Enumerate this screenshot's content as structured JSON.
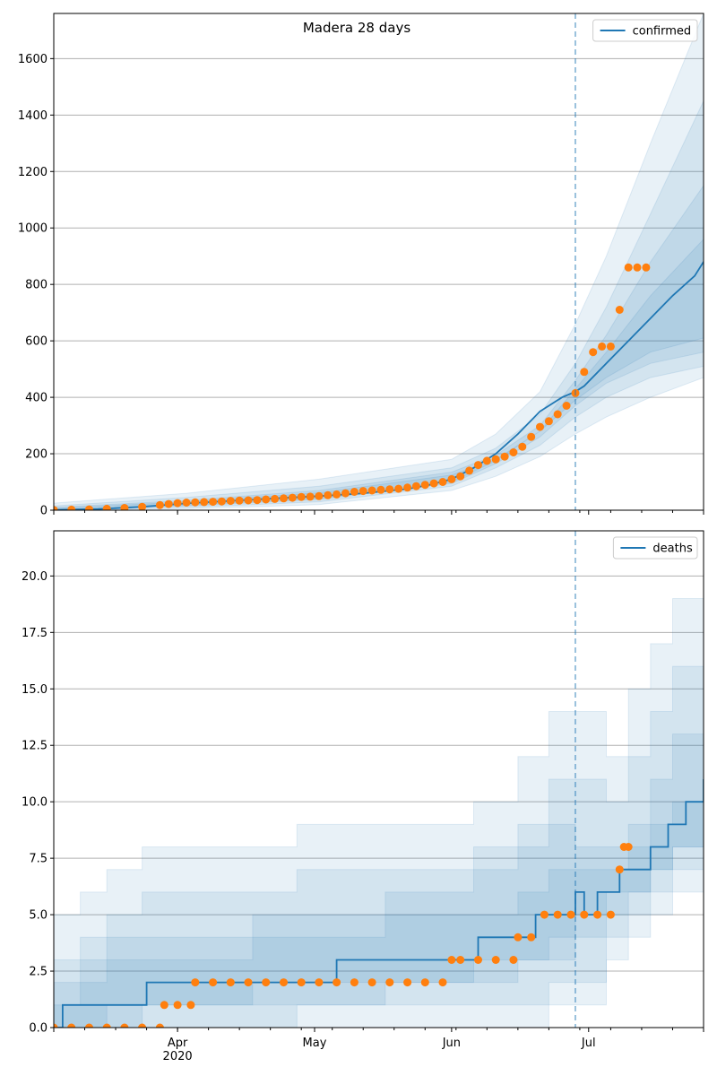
{
  "chart_data": [
    {
      "type": "line",
      "title": "Madera 28 days",
      "xlabel": "",
      "ylabel": "",
      "ylim": [
        0,
        1760
      ],
      "yticks": [
        0,
        200,
        400,
        600,
        800,
        1000,
        1200,
        1400,
        1600
      ],
      "ytick_labels": [
        "0",
        "200",
        "400",
        "600",
        "800",
        "1000",
        "1200",
        "1400",
        "1600"
      ],
      "xlim_days": [
        0,
        147
      ],
      "x_major_ticks": [
        {
          "day": 28,
          "label": "Apr"
        },
        {
          "day": 59,
          "label": "May"
        },
        {
          "day": 90,
          "label": "Jun"
        },
        {
          "day": 121,
          "label": "Jul"
        }
      ],
      "x_year_label": {
        "day": 28,
        "label": "2020"
      },
      "grid": "y",
      "legend_position": "top-right",
      "forecast_start_day": 118,
      "series": [
        {
          "name": "confirmed",
          "kind": "median-line",
          "color": "#1f77b4",
          "x": [
            0,
            10,
            20,
            30,
            40,
            50,
            60,
            70,
            80,
            85,
            90,
            95,
            100,
            105,
            110,
            115,
            118,
            120,
            125,
            130,
            135,
            140,
            145,
            147
          ],
          "y": [
            1,
            4,
            12,
            24,
            33,
            42,
            50,
            60,
            75,
            90,
            110,
            150,
            200,
            270,
            350,
            400,
            420,
            440,
            520,
            600,
            680,
            760,
            830,
            880
          ]
        },
        {
          "name": "",
          "kind": "observed-points",
          "color": "#ff7f0e",
          "x": [
            0,
            4,
            8,
            12,
            16,
            20,
            24,
            26,
            28,
            30,
            32,
            34,
            36,
            38,
            40,
            42,
            44,
            46,
            48,
            50,
            52,
            54,
            56,
            58,
            60,
            62,
            64,
            66,
            68,
            70,
            72,
            74,
            76,
            78,
            80,
            82,
            84,
            86,
            88,
            90,
            92,
            94,
            96,
            98,
            100,
            102,
            104,
            106,
            108,
            110,
            112,
            114,
            116,
            118,
            120,
            122,
            124,
            126,
            128,
            130,
            132,
            134
          ],
          "y": [
            1,
            2,
            3,
            5,
            8,
            12,
            18,
            22,
            25,
            27,
            28,
            29,
            30,
            31,
            33,
            34,
            35,
            36,
            38,
            40,
            42,
            44,
            47,
            48,
            50,
            53,
            56,
            60,
            65,
            68,
            70,
            72,
            74,
            76,
            80,
            85,
            90,
            95,
            100,
            110,
            120,
            140,
            160,
            175,
            180,
            190,
            205,
            225,
            260,
            295,
            315,
            340,
            370,
            415,
            490,
            560,
            580,
            580,
            710,
            860,
            860,
            860
          ]
        }
      ],
      "bands": [
        {
          "x": [
            0,
            30,
            60,
            90,
            100,
            110,
            118,
            125,
            135,
            147
          ],
          "lo": [
            0,
            5,
            20,
            70,
            120,
            190,
            270,
            330,
            400,
            470
          ],
          "hi": [
            25,
            60,
            110,
            180,
            270,
            420,
            660,
            900,
            1300,
            1760
          ]
        },
        {
          "x": [
            0,
            30,
            60,
            90,
            100,
            110,
            118,
            125,
            135,
            147
          ],
          "lo": [
            0,
            10,
            30,
            85,
            150,
            230,
            330,
            400,
            470,
            510
          ],
          "hi": [
            15,
            45,
            85,
            150,
            220,
            340,
            520,
            720,
            1050,
            1450
          ]
        },
        {
          "x": [
            0,
            30,
            60,
            90,
            100,
            110,
            118,
            125,
            135,
            147
          ],
          "lo": [
            0,
            15,
            38,
            95,
            165,
            260,
            370,
            450,
            520,
            560
          ],
          "hi": [
            10,
            35,
            70,
            135,
            195,
            300,
            460,
            620,
            880,
            1150
          ]
        },
        {
          "x": [
            0,
            30,
            60,
            90,
            100,
            110,
            118,
            125,
            135,
            147
          ],
          "lo": [
            0,
            18,
            42,
            100,
            175,
            280,
            390,
            470,
            560,
            610
          ],
          "hi": [
            6,
            30,
            62,
            125,
            180,
            280,
            430,
            560,
            760,
            960
          ]
        }
      ]
    },
    {
      "type": "line",
      "title": "",
      "xlabel": "",
      "ylabel": "",
      "ylim": [
        0,
        22
      ],
      "yticks": [
        0,
        2.5,
        5,
        7.5,
        10,
        12.5,
        15,
        17.5,
        20
      ],
      "ytick_labels": [
        "0.0",
        "2.5",
        "5.0",
        "7.5",
        "10.0",
        "12.5",
        "15.0",
        "17.5",
        "20.0"
      ],
      "xlim_days": [
        0,
        147
      ],
      "x_major_ticks": [
        {
          "day": 28,
          "label": "Apr"
        },
        {
          "day": 59,
          "label": "May"
        },
        {
          "day": 90,
          "label": "Jun"
        },
        {
          "day": 121,
          "label": "Jul"
        }
      ],
      "x_year_label": {
        "day": 28,
        "label": "2020"
      },
      "grid": "y",
      "legend_position": "top-right",
      "forecast_start_day": 118,
      "series": [
        {
          "name": "deaths",
          "kind": "median-step",
          "color": "#1f77b4",
          "x": [
            0,
            2,
            21,
            64,
            96,
            109,
            118,
            120,
            123,
            128,
            135,
            139,
            143,
            147
          ],
          "y": [
            0,
            1,
            2,
            3,
            4,
            5,
            6,
            5,
            6,
            7,
            8,
            9,
            10,
            11
          ]
        },
        {
          "name": "",
          "kind": "observed-points",
          "color": "#ff7f0e",
          "x": [
            0,
            4,
            8,
            12,
            16,
            20,
            24,
            25,
            28,
            31,
            32,
            36,
            40,
            44,
            48,
            52,
            56,
            60,
            64,
            68,
            72,
            76,
            80,
            84,
            88,
            90,
            92,
            96,
            100,
            104,
            105,
            108,
            111,
            114,
            117,
            120,
            123,
            126,
            128,
            129,
            130
          ],
          "y": [
            0,
            0,
            0,
            0,
            0,
            0,
            0,
            1,
            1,
            1,
            2,
            2,
            2,
            2,
            2,
            2,
            2,
            2,
            2,
            2,
            2,
            2,
            2,
            2,
            2,
            3,
            3,
            3,
            3,
            3,
            4,
            4,
            5,
            5,
            5,
            5,
            5,
            5,
            7,
            8,
            8
          ]
        }
      ],
      "bands": [
        {
          "x": [
            0,
            2,
            6,
            12,
            20,
            45,
            55,
            75,
            95,
            105,
            112,
            118,
            125,
            130,
            135,
            140,
            147
          ],
          "lo": [
            0,
            0,
            0,
            0,
            0,
            0,
            0,
            0,
            0,
            0,
            1,
            1,
            3,
            4,
            5,
            6,
            6
          ],
          "hi": [
            5,
            5,
            6,
            7,
            8,
            8,
            9,
            9,
            10,
            12,
            14,
            14,
            12,
            15,
            17,
            19,
            22
          ]
        },
        {
          "x": [
            0,
            2,
            6,
            12,
            20,
            45,
            55,
            75,
            95,
            105,
            112,
            118,
            125,
            130,
            135,
            140,
            147
          ],
          "lo": [
            0,
            0,
            0,
            0,
            0,
            0,
            1,
            1,
            1,
            1,
            2,
            2,
            4,
            5,
            6,
            7,
            7
          ],
          "hi": [
            3,
            3,
            4,
            5,
            6,
            6,
            7,
            7,
            8,
            9,
            11,
            11,
            10,
            12,
            14,
            16,
            18
          ]
        },
        {
          "x": [
            0,
            2,
            6,
            12,
            20,
            45,
            55,
            75,
            95,
            105,
            112,
            118,
            125,
            130,
            135,
            140,
            147
          ],
          "lo": [
            0,
            0,
            0,
            0,
            1,
            1,
            1,
            2,
            2,
            3,
            3,
            4,
            5,
            6,
            7,
            8,
            8
          ],
          "hi": [
            2,
            2,
            3,
            4,
            4,
            5,
            5,
            6,
            7,
            8,
            9,
            8,
            8,
            9,
            11,
            13,
            15
          ]
        },
        {
          "x": [
            0,
            2,
            6,
            12,
            20,
            45,
            55,
            75,
            95,
            105,
            112,
            118,
            125,
            130,
            135,
            140,
            147
          ],
          "lo": [
            0,
            0,
            0,
            1,
            1,
            2,
            2,
            2,
            3,
            3,
            4,
            5,
            6,
            6,
            7,
            8,
            9
          ],
          "hi": [
            1,
            1,
            2,
            3,
            3,
            4,
            4,
            5,
            5,
            6,
            7,
            7,
            7,
            8,
            9,
            10,
            12
          ]
        }
      ]
    }
  ]
}
